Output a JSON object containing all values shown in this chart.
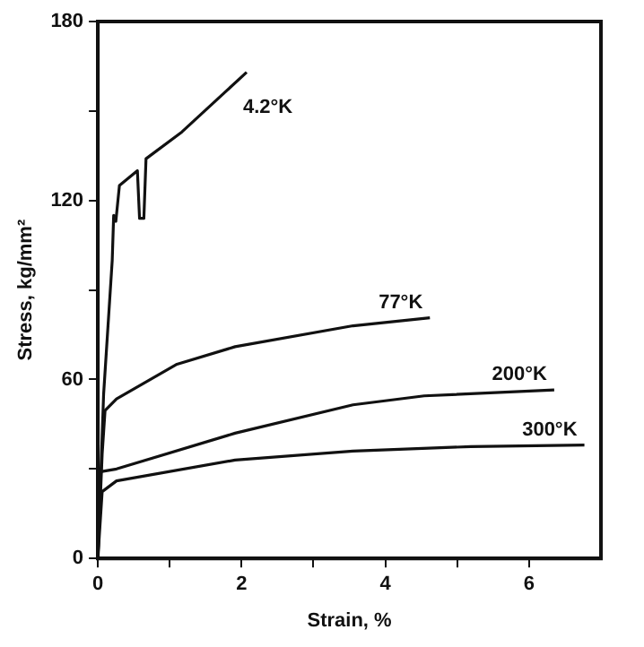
{
  "chart_data": {
    "type": "line",
    "xlabel": "Strain, %",
    "ylabel": "Stress, kg/mm²",
    "xlim": [
      0,
      7
    ],
    "ylim": [
      0,
      180
    ],
    "xticks": [
      0,
      {
        "value": 1,
        "label": null
      },
      2,
      {
        "value": 3,
        "label": null
      },
      4,
      {
        "value": 5,
        "label": null
      },
      6
    ],
    "yticks": [
      0,
      {
        "value": 30,
        "label": null
      },
      60,
      {
        "value": 90,
        "label": null
      },
      120,
      {
        "value": 150,
        "label": null
      },
      180
    ],
    "grid": false,
    "legend": false,
    "marker": "none",
    "line_style": "solid",
    "series": [
      {
        "name": "4.2°K",
        "color": "#111111",
        "x": [
          0,
          0.08,
          0.2,
          0.22,
          0.25,
          0.3,
          0.55,
          0.58,
          0.64,
          0.67,
          1.17,
          2.07
        ],
        "values": [
          0,
          55,
          100,
          115,
          113,
          125,
          130,
          114,
          114,
          134,
          143,
          163
        ]
      },
      {
        "name": "77°K",
        "color": "#111111",
        "x": [
          0,
          0.06,
          0.1,
          0.26,
          1.09,
          1.91,
          3.55,
          4.62
        ],
        "values": [
          0,
          35,
          49.6,
          53.5,
          65,
          71,
          78,
          80.7
        ]
      },
      {
        "name": "200°K",
        "color": "#111111",
        "x": [
          0,
          0.02,
          0.26,
          1.91,
          3.55,
          4.54,
          6.35
        ],
        "values": [
          0,
          29,
          30,
          42,
          51.5,
          54.5,
          56.5
        ]
      },
      {
        "name": "300°K",
        "color": "#111111",
        "x": [
          0,
          0.06,
          0.26,
          1.91,
          3.55,
          5.19,
          6.77
        ],
        "values": [
          0,
          22.4,
          26,
          33,
          36,
          37.5,
          38
        ]
      }
    ]
  }
}
